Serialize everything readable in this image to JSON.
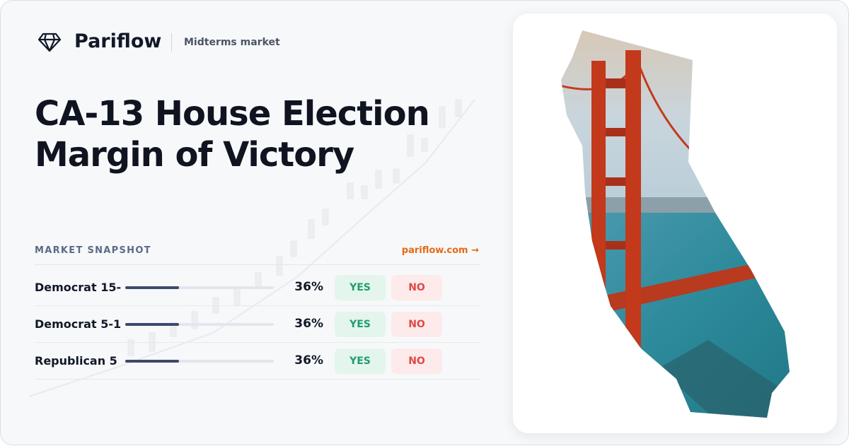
{
  "header": {
    "brand": "Pariflow",
    "tag": "Midterms market"
  },
  "title": [
    "CA-13 House Election",
    "Margin of Victory"
  ],
  "snapshot": {
    "label": "MARKET SNAPSHOT",
    "link": "pariflow.com →",
    "rows": [
      {
        "name": "Democrat 15-",
        "value": 36,
        "value_label": "36%",
        "yes": "YES",
        "no": "NO"
      },
      {
        "name": "Democrat 5-1",
        "value": 36,
        "value_label": "36%",
        "yes": "YES",
        "no": "NO"
      },
      {
        "name": "Republican 5",
        "value": 36,
        "value_label": "36%",
        "yes": "YES",
        "no": "NO"
      }
    ]
  }
}
